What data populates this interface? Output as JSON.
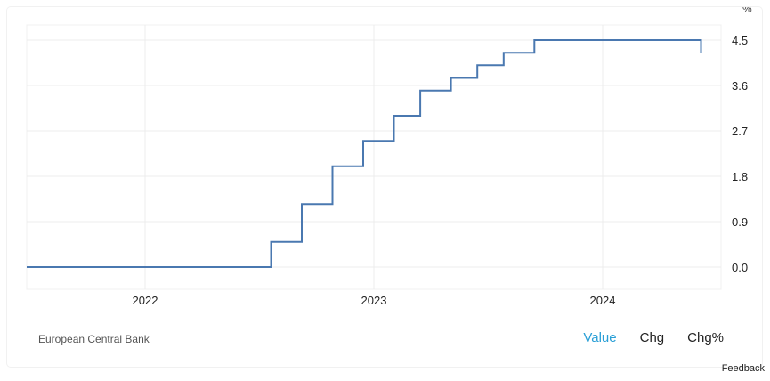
{
  "chart_data": {
    "type": "line",
    "line_style": "step",
    "unit": "%",
    "x_ticks": [
      "2022",
      "2023",
      "2024"
    ],
    "y_ticks": [
      "0.0",
      "0.9",
      "1.8",
      "2.7",
      "3.6",
      "4.5"
    ],
    "ylim": [
      0,
      4.5
    ],
    "grid": true,
    "series": [
      {
        "color": "#4a78b0",
        "points": [
          {
            "x": "2021-06-15",
            "y": 0.0
          },
          {
            "x": "2022-07-21",
            "y": 0.0
          },
          {
            "x": "2022-07-21",
            "y": 0.5
          },
          {
            "x": "2022-09-08",
            "y": 0.5
          },
          {
            "x": "2022-09-08",
            "y": 1.25
          },
          {
            "x": "2022-10-27",
            "y": 1.25
          },
          {
            "x": "2022-10-27",
            "y": 2.0
          },
          {
            "x": "2022-12-15",
            "y": 2.0
          },
          {
            "x": "2022-12-15",
            "y": 2.5
          },
          {
            "x": "2023-02-02",
            "y": 2.5
          },
          {
            "x": "2023-02-02",
            "y": 3.0
          },
          {
            "x": "2023-03-16",
            "y": 3.0
          },
          {
            "x": "2023-03-16",
            "y": 3.5
          },
          {
            "x": "2023-05-04",
            "y": 3.5
          },
          {
            "x": "2023-05-04",
            "y": 3.75
          },
          {
            "x": "2023-06-15",
            "y": 3.75
          },
          {
            "x": "2023-06-15",
            "y": 4.0
          },
          {
            "x": "2023-07-27",
            "y": 4.0
          },
          {
            "x": "2023-07-27",
            "y": 4.25
          },
          {
            "x": "2023-09-14",
            "y": 4.25
          },
          {
            "x": "2023-09-14",
            "y": 4.5
          },
          {
            "x": "2024-06-06",
            "y": 4.5
          },
          {
            "x": "2024-06-06",
            "y": 4.25
          }
        ]
      }
    ]
  },
  "source_label": "European Central Bank",
  "tabs": [
    {
      "label": "Value",
      "active": true
    },
    {
      "label": "Chg",
      "active": false
    },
    {
      "label": "Chg%",
      "active": false
    }
  ],
  "feedback_label": "Feedback",
  "colors": {
    "accent": "#2a9fd6",
    "series": "#4a78b0",
    "grid": "#ececec"
  }
}
